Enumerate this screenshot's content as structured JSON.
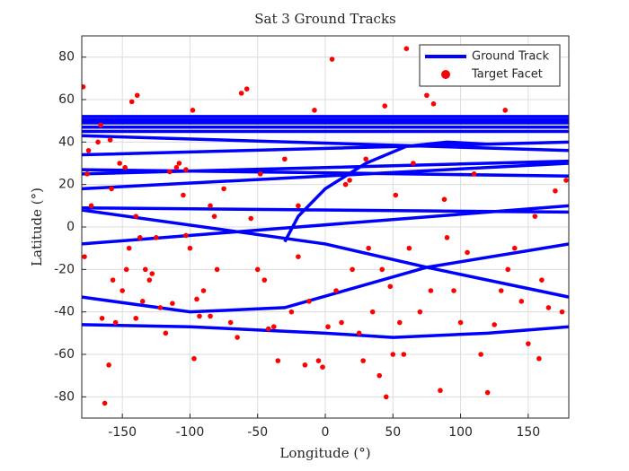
{
  "chart_data": {
    "type": "scatter",
    "title": "Sat 3 Ground Tracks",
    "x_label": "Longitude (°)",
    "y_label": "Latitude (°)",
    "xlim": [
      -180,
      180
    ],
    "ylim": [
      -90,
      90
    ],
    "xticks": [
      -150,
      -100,
      -50,
      0,
      50,
      100,
      150
    ],
    "yticks": [
      -80,
      -60,
      -40,
      -20,
      0,
      20,
      40,
      60,
      80
    ],
    "grid": true,
    "legend": "northeast",
    "series": [
      {
        "name": "Ground Track",
        "type": "line",
        "color": "#0000ff",
        "x": [
          -180,
          180,
          null,
          -180,
          180,
          null,
          -180,
          180,
          null,
          -180,
          180,
          null,
          -180,
          180,
          null,
          -180,
          180,
          null,
          -180,
          180,
          null,
          -180,
          180,
          null,
          -180,
          180,
          null,
          -180,
          180,
          null,
          -180,
          180,
          null,
          -180,
          180,
          null,
          -180,
          0,
          75,
          180,
          null,
          -180,
          -100,
          -30,
          75,
          180,
          null,
          -180,
          -100,
          0,
          50,
          120,
          180,
          null,
          -30,
          -20,
          0,
          30,
          60,
          90,
          120
        ],
        "y": [
          52,
          52,
          null,
          50.5,
          50.5,
          null,
          49,
          49,
          null,
          47,
          47,
          null,
          45,
          45,
          null,
          43,
          36,
          null,
          34,
          40,
          null,
          27,
          24,
          null,
          25,
          31,
          null,
          18,
          30,
          null,
          9,
          7,
          null,
          -8,
          10,
          null,
          8,
          -8,
          -19,
          -33,
          null,
          -33,
          -40,
          -38,
          -19,
          -8,
          null,
          -46,
          -47,
          -50,
          -52,
          -50,
          -47,
          null,
          -7,
          5,
          18,
          30,
          38,
          40,
          39
        ]
      },
      {
        "name": "Target Facet",
        "type": "scatter",
        "color": "#ff0000",
        "x": [
          -179,
          -178,
          -176,
          -175,
          -173,
          -168,
          -166,
          -165,
          -163,
          -160,
          -159,
          -158,
          -157,
          -155,
          -152,
          -150,
          -148,
          -147,
          -145,
          -143,
          -140,
          -139,
          -137,
          -135,
          -133,
          -130,
          -128,
          -125,
          -122,
          -118,
          -115,
          -113,
          -110,
          -108,
          -105,
          -103,
          -100,
          -98,
          -97,
          -95,
          -93,
          -90,
          -85,
          -82,
          -80,
          -75,
          -70,
          -65,
          -62,
          -58,
          -55,
          -50,
          -48,
          -45,
          -42,
          -38,
          -35,
          -30,
          -25,
          -20,
          -15,
          -12,
          -8,
          -5,
          -2,
          2,
          5,
          8,
          12,
          15,
          18,
          20,
          25,
          28,
          30,
          32,
          35,
          40,
          42,
          44,
          45,
          48,
          52,
          55,
          58,
          60,
          62,
          65,
          70,
          75,
          78,
          80,
          85,
          88,
          90,
          95,
          100,
          105,
          110,
          115,
          120,
          125,
          130,
          133,
          135,
          140,
          145,
          150,
          155,
          158,
          160,
          165,
          170,
          175,
          178,
          -85,
          -20,
          50,
          -103,
          -140
        ],
        "y": [
          66,
          -14,
          25,
          36,
          10,
          40,
          48,
          -43,
          -83,
          -65,
          41,
          18,
          -25,
          -45,
          30,
          -30,
          28,
          -20,
          -10,
          59,
          -43,
          62,
          -5,
          -35,
          -20,
          -25,
          -22,
          -5,
          -38,
          -50,
          26,
          -36,
          28,
          30,
          15,
          -4,
          -10,
          55,
          -62,
          -34,
          -42,
          -30,
          -42,
          5,
          -20,
          18,
          -45,
          -52,
          63,
          65,
          4,
          -20,
          25,
          -25,
          -48,
          -47,
          -63,
          32,
          -40,
          10,
          -65,
          -35,
          55,
          -63,
          -66,
          -47,
          79,
          -30,
          -45,
          20,
          22,
          -20,
          -50,
          -63,
          32,
          -10,
          -40,
          -70,
          -20,
          57,
          -80,
          -28,
          15,
          -45,
          -60,
          84,
          -10,
          30,
          -40,
          62,
          -30,
          58,
          -77,
          13,
          -5,
          -30,
          -45,
          -12,
          25,
          -60,
          -78,
          -46,
          -30,
          55,
          -20,
          -10,
          -35,
          -55,
          5,
          -62,
          -25,
          -38,
          17,
          -40,
          22,
          10,
          -14,
          -60,
          27,
          5
        ]
      }
    ]
  }
}
